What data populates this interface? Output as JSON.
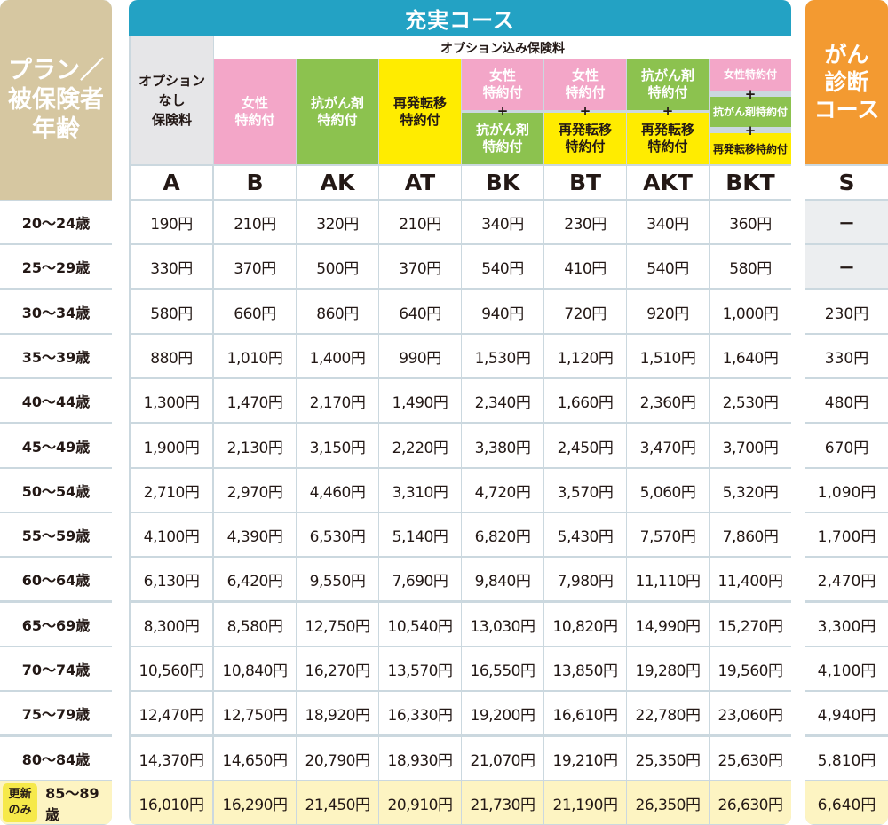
{
  "left": {
    "header": "プラン／\n被保険者\n年齢",
    "ages": [
      "20〜24歳",
      "25〜29歳",
      "30〜34歳",
      "35〜39歳",
      "40〜44歳",
      "45〜49歳",
      "50〜54歳",
      "55〜59歳",
      "60〜64歳",
      "65〜69歳",
      "70〜74歳",
      "75〜79歳",
      "80〜84歳",
      "85〜89歳"
    ],
    "renew_badge": "更新\nのみ"
  },
  "main": {
    "title": "充実コース",
    "a_header": "オプション\nなし\n保険料",
    "option_header": "オプション込み保険料",
    "columns": [
      {
        "code": "A"
      },
      {
        "code": "B",
        "blocks": [
          {
            "text": "女性\n特約付",
            "color": "pink"
          }
        ]
      },
      {
        "code": "AK",
        "blocks": [
          {
            "text": "抗がん剤\n特約付",
            "color": "green"
          }
        ]
      },
      {
        "code": "AT",
        "blocks": [
          {
            "text": "再発転移\n特約付",
            "color": "yellow"
          }
        ]
      },
      {
        "code": "BK",
        "blocks": [
          {
            "text": "女性\n特約付",
            "color": "pink"
          },
          {
            "text": "抗がん剤\n特約付",
            "color": "green"
          }
        ]
      },
      {
        "code": "BT",
        "blocks": [
          {
            "text": "女性\n特約付",
            "color": "pink"
          },
          {
            "text": "再発転移\n特約付",
            "color": "yellow"
          }
        ]
      },
      {
        "code": "AKT",
        "blocks": [
          {
            "text": "抗がん剤\n特約付",
            "color": "green"
          },
          {
            "text": "再発転移\n特約付",
            "color": "yellow"
          }
        ]
      },
      {
        "code": "BKT",
        "blocks": [
          {
            "text": "女性特約付",
            "color": "pink"
          },
          {
            "text": "抗がん剤特約付",
            "color": "green"
          },
          {
            "text": "再発転移特約付",
            "color": "yellow"
          }
        ]
      }
    ],
    "plus": "+",
    "prices": [
      [
        "190円",
        "210円",
        "320円",
        "210円",
        "340円",
        "230円",
        "340円",
        "360円"
      ],
      [
        "330円",
        "370円",
        "500円",
        "370円",
        "540円",
        "410円",
        "540円",
        "580円"
      ],
      [
        "580円",
        "660円",
        "860円",
        "640円",
        "940円",
        "720円",
        "920円",
        "1,000円"
      ],
      [
        "880円",
        "1,010円",
        "1,400円",
        "990円",
        "1,530円",
        "1,120円",
        "1,510円",
        "1,640円"
      ],
      [
        "1,300円",
        "1,470円",
        "2,170円",
        "1,490円",
        "2,340円",
        "1,660円",
        "2,360円",
        "2,530円"
      ],
      [
        "1,900円",
        "2,130円",
        "3,150円",
        "2,220円",
        "3,380円",
        "2,450円",
        "3,470円",
        "3,700円"
      ],
      [
        "2,710円",
        "2,970円",
        "4,460円",
        "3,310円",
        "4,720円",
        "3,570円",
        "5,060円",
        "5,320円"
      ],
      [
        "4,100円",
        "4,390円",
        "6,530円",
        "5,140円",
        "6,820円",
        "5,430円",
        "7,570円",
        "7,860円"
      ],
      [
        "6,130円",
        "6,420円",
        "9,550円",
        "7,690円",
        "9,840円",
        "7,980円",
        "11,110円",
        "11,400円"
      ],
      [
        "8,300円",
        "8,580円",
        "12,750円",
        "10,540円",
        "13,030円",
        "10,820円",
        "14,990円",
        "15,270円"
      ],
      [
        "10,560円",
        "10,840円",
        "16,270円",
        "13,570円",
        "16,550円",
        "13,850円",
        "19,280円",
        "19,560円"
      ],
      [
        "12,470円",
        "12,750円",
        "18,920円",
        "16,330円",
        "19,200円",
        "16,610円",
        "22,780円",
        "23,060円"
      ],
      [
        "14,370円",
        "14,650円",
        "20,790円",
        "18,930円",
        "21,070円",
        "19,210円",
        "25,350円",
        "25,630円"
      ],
      [
        "16,010円",
        "16,290円",
        "21,450円",
        "20,910円",
        "21,730円",
        "21,190円",
        "26,350円",
        "26,630円"
      ]
    ]
  },
  "s_course": {
    "title": "がん\n診断\nコース",
    "code": "S",
    "prices": [
      "ー",
      "ー",
      "230円",
      "330円",
      "480円",
      "670円",
      "1,090円",
      "1,700円",
      "2,470円",
      "3,300円",
      "4,100円",
      "4,940円",
      "5,810円",
      "6,640円"
    ]
  },
  "colors": {
    "teal": "#23a2c4",
    "beige": "#d6c7a1",
    "orange": "#f39a31",
    "pink": "#f3a6c8",
    "green": "#8cc24f",
    "yellow": "#ffec00",
    "renew_row": "#fdf4c2"
  }
}
